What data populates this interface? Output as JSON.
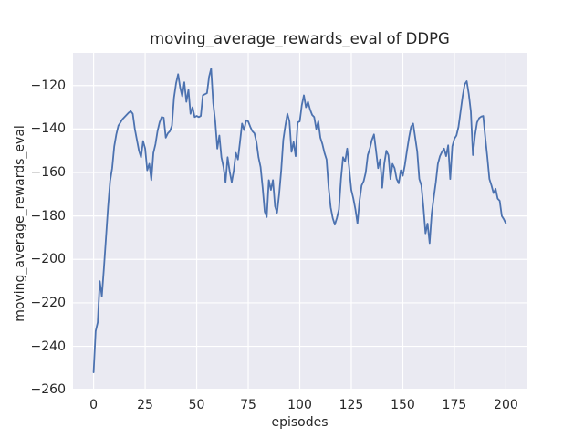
{
  "chart_data": {
    "type": "line",
    "title": "moving_average_rewards_eval of DDPG",
    "xlabel": "episodes",
    "ylabel": "moving_average_rewards_eval",
    "x_start": 0,
    "x_step": 1,
    "values": [
      -252,
      -233,
      -229,
      -210,
      -217,
      -204,
      -190,
      -176,
      -164,
      -158,
      -148,
      -142.5,
      -138.5,
      -137,
      -135.5,
      -134.5,
      -133.5,
      -132.5,
      -131.8,
      -133,
      -140,
      -145,
      -150,
      -153,
      -145.5,
      -149,
      -159,
      -156,
      -163.5,
      -151,
      -147,
      -141,
      -137,
      -134.5,
      -134.8,
      -144,
      -142,
      -141,
      -138.5,
      -125.5,
      -119,
      -114.8,
      -121,
      -125,
      -118.5,
      -127.5,
      -122,
      -133,
      -130,
      -134.5,
      -134,
      -134.5,
      -134,
      -124.5,
      -124,
      -123.5,
      -116,
      -112.2,
      -128,
      -136.5,
      -149,
      -143,
      -153,
      -157.5,
      -164.5,
      -153,
      -159.5,
      -164.5,
      -159,
      -151,
      -154,
      -146,
      -137.5,
      -140.5,
      -136,
      -136.5,
      -139,
      -141,
      -142,
      -146,
      -153,
      -157.5,
      -167,
      -178,
      -180.5,
      -163.5,
      -168,
      -163.5,
      -175.5,
      -178.5,
      -170,
      -159,
      -145,
      -138.5,
      -133,
      -136.5,
      -150.5,
      -146,
      -152.5,
      -137,
      -136.5,
      -129,
      -124.5,
      -130,
      -127.5,
      -131,
      -133.5,
      -134.5,
      -140,
      -136.5,
      -144,
      -147,
      -151,
      -154,
      -167,
      -176,
      -181,
      -184,
      -181,
      -177,
      -163,
      -153,
      -155,
      -149,
      -158,
      -168,
      -172,
      -177,
      -183.5,
      -173,
      -166,
      -164,
      -160,
      -152,
      -149,
      -145,
      -142.5,
      -150,
      -158,
      -154,
      -167,
      -156,
      -150,
      -152,
      -163,
      -156,
      -158,
      -163,
      -165,
      -159,
      -161.5,
      -156.5,
      -150,
      -144,
      -139,
      -137.5,
      -144,
      -150.5,
      -163,
      -166,
      -176,
      -188,
      -183.5,
      -192.5,
      -179,
      -171.5,
      -164.5,
      -156,
      -152.5,
      -150.5,
      -149,
      -152.5,
      -147.5,
      -163,
      -148,
      -144.5,
      -143,
      -139,
      -132,
      -125,
      -119.5,
      -118,
      -124,
      -132,
      -152,
      -143,
      -137,
      -135,
      -134.3,
      -134,
      -144,
      -153,
      -163,
      -166,
      -169.5,
      -167.5,
      -172,
      -173,
      -180,
      -181.5,
      -183.5
    ],
    "xticks": [
      0,
      25,
      50,
      75,
      100,
      125,
      150,
      175,
      200
    ],
    "yticks": [
      -120,
      -140,
      -160,
      -180,
      -200,
      -220,
      -240,
      -260
    ],
    "xlim": [
      -10,
      210
    ],
    "ylim": [
      -259.5,
      -105
    ],
    "grid": true,
    "legend": null,
    "line_color": "#4c72b0",
    "plot_bg": "#eaeaf2",
    "grid_color": "#ffffff",
    "text_color": "#262626"
  }
}
